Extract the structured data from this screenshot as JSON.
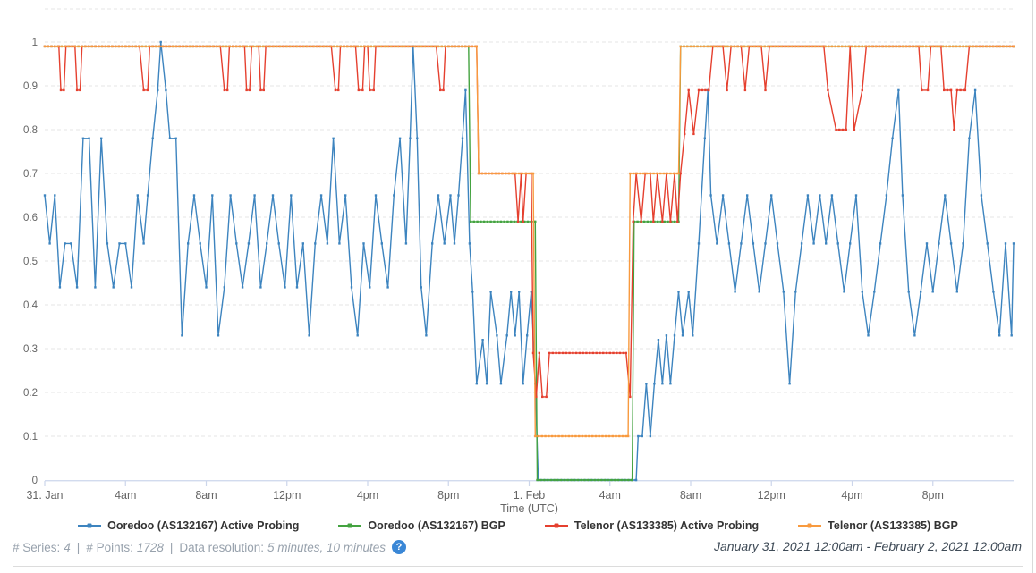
{
  "chart_data": {
    "type": "line",
    "title": "",
    "xlabel": "Time (UTC)",
    "ylabel": "",
    "ylim": [
      0,
      1
    ],
    "x_unit_note": "hours from start of visible window",
    "x_range_hours": [
      0,
      48
    ],
    "grid": "horizontal-dashed",
    "legend_position": "bottom",
    "y_ticks": [
      {
        "v": 0,
        "label": "0"
      },
      {
        "v": 0.1,
        "label": "0.1"
      },
      {
        "v": 0.2,
        "label": "0.2"
      },
      {
        "v": 0.3,
        "label": "0.3"
      },
      {
        "v": 0.4,
        "label": "0.4"
      },
      {
        "v": 0.5,
        "label": "0.5"
      },
      {
        "v": 0.6,
        "label": "0.6"
      },
      {
        "v": 0.7,
        "label": "0.7"
      },
      {
        "v": 0.8,
        "label": "0.8"
      },
      {
        "v": 0.9,
        "label": "0.9"
      },
      {
        "v": 1,
        "label": "1"
      }
    ],
    "x_ticks": [
      {
        "t": 0,
        "label": "31. Jan"
      },
      {
        "t": 4,
        "label": "4am"
      },
      {
        "t": 8,
        "label": "8am"
      },
      {
        "t": 12,
        "label": "12pm"
      },
      {
        "t": 16,
        "label": "4pm"
      },
      {
        "t": 20,
        "label": "8pm"
      },
      {
        "t": 24,
        "label": "1. Feb"
      },
      {
        "t": 28,
        "label": "4am"
      },
      {
        "t": 32,
        "label": "8am"
      },
      {
        "t": 36,
        "label": "12pm"
      },
      {
        "t": 40,
        "label": "4pm"
      },
      {
        "t": 44,
        "label": "8pm"
      }
    ],
    "series": [
      {
        "name": "Ooredoo (AS132167) Active Probing",
        "color": "#3d84bf",
        "points": [
          [
            0,
            0.65
          ],
          [
            0.25,
            0.54
          ],
          [
            0.5,
            0.65
          ],
          [
            0.75,
            0.44
          ],
          [
            1,
            0.54
          ],
          [
            1.3,
            0.54
          ],
          [
            1.6,
            0.44
          ],
          [
            1.9,
            0.78
          ],
          [
            2.2,
            0.78
          ],
          [
            2.5,
            0.44
          ],
          [
            2.8,
            0.78
          ],
          [
            3.1,
            0.54
          ],
          [
            3.4,
            0.44
          ],
          [
            3.7,
            0.54
          ],
          [
            4,
            0.54
          ],
          [
            4.3,
            0.44
          ],
          [
            4.6,
            0.65
          ],
          [
            4.9,
            0.54
          ],
          [
            5.1,
            0.65
          ],
          [
            5.35,
            0.78
          ],
          [
            5.6,
            0.89
          ],
          [
            5.75,
            1
          ],
          [
            6,
            0.89
          ],
          [
            6.2,
            0.78
          ],
          [
            6.5,
            0.78
          ],
          [
            6.8,
            0.33
          ],
          [
            7.1,
            0.54
          ],
          [
            7.4,
            0.65
          ],
          [
            7.7,
            0.54
          ],
          [
            8,
            0.44
          ],
          [
            8.3,
            0.65
          ],
          [
            8.6,
            0.33
          ],
          [
            8.9,
            0.44
          ],
          [
            9.2,
            0.65
          ],
          [
            9.5,
            0.54
          ],
          [
            9.8,
            0.44
          ],
          [
            10.1,
            0.54
          ],
          [
            10.4,
            0.65
          ],
          [
            10.7,
            0.44
          ],
          [
            11,
            0.54
          ],
          [
            11.3,
            0.65
          ],
          [
            11.6,
            0.54
          ],
          [
            11.9,
            0.44
          ],
          [
            12.2,
            0.65
          ],
          [
            12.5,
            0.44
          ],
          [
            12.8,
            0.54
          ],
          [
            13.1,
            0.33
          ],
          [
            13.4,
            0.54
          ],
          [
            13.7,
            0.65
          ],
          [
            14,
            0.54
          ],
          [
            14.3,
            0.78
          ],
          [
            14.6,
            0.54
          ],
          [
            14.9,
            0.65
          ],
          [
            15.2,
            0.44
          ],
          [
            15.5,
            0.33
          ],
          [
            15.8,
            0.54
          ],
          [
            16.1,
            0.44
          ],
          [
            16.4,
            0.65
          ],
          [
            16.7,
            0.54
          ],
          [
            17,
            0.44
          ],
          [
            17.3,
            0.65
          ],
          [
            17.6,
            0.78
          ],
          [
            17.9,
            0.54
          ],
          [
            18.1,
            0.78
          ],
          [
            18.25,
            0.99
          ],
          [
            18.45,
            0.78
          ],
          [
            18.65,
            0.44
          ],
          [
            18.9,
            0.33
          ],
          [
            19.2,
            0.54
          ],
          [
            19.5,
            0.65
          ],
          [
            19.8,
            0.54
          ],
          [
            20.1,
            0.65
          ],
          [
            20.3,
            0.54
          ],
          [
            20.5,
            0.65
          ],
          [
            20.7,
            0.78
          ],
          [
            20.85,
            0.89
          ],
          [
            21.05,
            0.54
          ],
          [
            21.2,
            0.43
          ],
          [
            21.4,
            0.22
          ],
          [
            21.7,
            0.32
          ],
          [
            21.9,
            0.22
          ],
          [
            22.1,
            0.43
          ],
          [
            22.4,
            0.33
          ],
          [
            22.6,
            0.22
          ],
          [
            22.9,
            0.33
          ],
          [
            23.1,
            0.43
          ],
          [
            23.3,
            0.33
          ],
          [
            23.5,
            0.43
          ],
          [
            23.7,
            0.22
          ],
          [
            23.9,
            0.33
          ],
          [
            24.1,
            0.43
          ],
          [
            24.3,
            0.22
          ],
          [
            24.45,
            0
          ],
          [
            29.3,
            0
          ],
          [
            29.4,
            0.1
          ],
          [
            29.6,
            0.1
          ],
          [
            29.8,
            0.22
          ],
          [
            30,
            0.1
          ],
          [
            30.2,
            0.22
          ],
          [
            30.4,
            0.32
          ],
          [
            30.6,
            0.22
          ],
          [
            30.8,
            0.33
          ],
          [
            31,
            0.22
          ],
          [
            31.2,
            0.33
          ],
          [
            31.4,
            0.43
          ],
          [
            31.6,
            0.33
          ],
          [
            31.9,
            0.43
          ],
          [
            32.1,
            0.33
          ],
          [
            32.4,
            0.54
          ],
          [
            32.7,
            0.78
          ],
          [
            32.85,
            0.89
          ],
          [
            33,
            0.65
          ],
          [
            33.3,
            0.54
          ],
          [
            33.6,
            0.65
          ],
          [
            33.9,
            0.54
          ],
          [
            34.2,
            0.43
          ],
          [
            34.5,
            0.54
          ],
          [
            34.8,
            0.65
          ],
          [
            35.1,
            0.54
          ],
          [
            35.4,
            0.43
          ],
          [
            35.7,
            0.54
          ],
          [
            36,
            0.65
          ],
          [
            36.3,
            0.54
          ],
          [
            36.6,
            0.43
          ],
          [
            36.9,
            0.22
          ],
          [
            37.2,
            0.43
          ],
          [
            37.5,
            0.54
          ],
          [
            37.8,
            0.65
          ],
          [
            38.1,
            0.54
          ],
          [
            38.4,
            0.65
          ],
          [
            38.7,
            0.54
          ],
          [
            39,
            0.65
          ],
          [
            39.3,
            0.54
          ],
          [
            39.6,
            0.43
          ],
          [
            39.9,
            0.54
          ],
          [
            40.2,
            0.65
          ],
          [
            40.5,
            0.43
          ],
          [
            40.8,
            0.33
          ],
          [
            41.1,
            0.43
          ],
          [
            41.4,
            0.54
          ],
          [
            41.7,
            0.65
          ],
          [
            42,
            0.78
          ],
          [
            42.3,
            0.89
          ],
          [
            42.5,
            0.65
          ],
          [
            42.8,
            0.43
          ],
          [
            43.1,
            0.33
          ],
          [
            43.4,
            0.43
          ],
          [
            43.7,
            0.54
          ],
          [
            44,
            0.43
          ],
          [
            44.3,
            0.54
          ],
          [
            44.6,
            0.65
          ],
          [
            44.9,
            0.54
          ],
          [
            45.2,
            0.43
          ],
          [
            45.5,
            0.54
          ],
          [
            45.8,
            0.78
          ],
          [
            46.1,
            0.89
          ],
          [
            46.4,
            0.65
          ],
          [
            46.7,
            0.54
          ],
          [
            47,
            0.43
          ],
          [
            47.3,
            0.33
          ],
          [
            47.6,
            0.54
          ],
          [
            47.9,
            0.33
          ],
          [
            48,
            0.54
          ]
        ]
      },
      {
        "name": "Ooredoo (AS132167) BGP",
        "color": "#44a340",
        "points": [
          [
            0,
            0.99
          ],
          [
            21,
            0.99
          ],
          [
            21.1,
            0.59
          ],
          [
            24.3,
            0.59
          ],
          [
            24.4,
            0
          ],
          [
            29.1,
            0
          ],
          [
            29.2,
            0.59
          ],
          [
            31.4,
            0.59
          ],
          [
            31.5,
            0.99
          ],
          [
            48,
            0.99
          ]
        ]
      },
      {
        "name": "Telenor (AS133385) Active Probing",
        "color": "#e5402f",
        "points": [
          [
            0,
            0.99
          ],
          [
            0.7,
            0.99
          ],
          [
            0.8,
            0.89
          ],
          [
            0.95,
            0.89
          ],
          [
            1.05,
            0.99
          ],
          [
            1.5,
            0.99
          ],
          [
            1.6,
            0.89
          ],
          [
            1.75,
            0.89
          ],
          [
            1.85,
            0.99
          ],
          [
            4.7,
            0.99
          ],
          [
            4.9,
            0.89
          ],
          [
            5.1,
            0.89
          ],
          [
            5.2,
            0.99
          ],
          [
            8.7,
            0.99
          ],
          [
            8.9,
            0.89
          ],
          [
            9.05,
            0.89
          ],
          [
            9.15,
            0.99
          ],
          [
            9.9,
            0.99
          ],
          [
            10,
            0.89
          ],
          [
            10.15,
            0.89
          ],
          [
            10.25,
            0.99
          ],
          [
            10.6,
            0.99
          ],
          [
            10.7,
            0.89
          ],
          [
            10.85,
            0.89
          ],
          [
            10.95,
            0.99
          ],
          [
            14.2,
            0.99
          ],
          [
            14.4,
            0.89
          ],
          [
            14.55,
            0.89
          ],
          [
            14.65,
            0.99
          ],
          [
            15.4,
            0.99
          ],
          [
            15.55,
            0.89
          ],
          [
            15.75,
            0.89
          ],
          [
            15.85,
            0.99
          ],
          [
            16,
            0.99
          ],
          [
            16.1,
            0.89
          ],
          [
            16.3,
            0.89
          ],
          [
            16.4,
            0.99
          ],
          [
            19.4,
            0.99
          ],
          [
            19.6,
            0.89
          ],
          [
            19.75,
            0.89
          ],
          [
            19.85,
            0.99
          ],
          [
            21.4,
            0.99
          ],
          [
            21.5,
            0.7
          ],
          [
            23.3,
            0.7
          ],
          [
            23.45,
            0.59
          ],
          [
            23.6,
            0.7
          ],
          [
            23.7,
            0.59
          ],
          [
            23.85,
            0.7
          ],
          [
            24.1,
            0.7
          ],
          [
            24.2,
            0.29
          ],
          [
            24.35,
            0.19
          ],
          [
            24.5,
            0.29
          ],
          [
            24.65,
            0.19
          ],
          [
            24.85,
            0.19
          ],
          [
            25,
            0.29
          ],
          [
            28.8,
            0.29
          ],
          [
            29,
            0.19
          ],
          [
            29.15,
            0.59
          ],
          [
            29.3,
            0.7
          ],
          [
            29.55,
            0.59
          ],
          [
            29.75,
            0.7
          ],
          [
            30,
            0.7
          ],
          [
            30.15,
            0.59
          ],
          [
            30.35,
            0.7
          ],
          [
            30.6,
            0.59
          ],
          [
            30.8,
            0.7
          ],
          [
            31,
            0.59
          ],
          [
            31.2,
            0.7
          ],
          [
            31.35,
            0.59
          ],
          [
            31.5,
            0.7
          ],
          [
            31.7,
            0.79
          ],
          [
            31.9,
            0.89
          ],
          [
            32.15,
            0.79
          ],
          [
            32.4,
            0.89
          ],
          [
            32.9,
            0.89
          ],
          [
            33.1,
            0.99
          ],
          [
            33.6,
            0.99
          ],
          [
            33.8,
            0.89
          ],
          [
            34,
            0.99
          ],
          [
            34.5,
            0.99
          ],
          [
            34.7,
            0.89
          ],
          [
            34.9,
            0.99
          ],
          [
            35.5,
            0.99
          ],
          [
            35.7,
            0.89
          ],
          [
            35.9,
            0.99
          ],
          [
            38.6,
            0.99
          ],
          [
            38.8,
            0.89
          ],
          [
            39.2,
            0.8
          ],
          [
            39.7,
            0.8
          ],
          [
            39.9,
            0.99
          ],
          [
            40.1,
            0.8
          ],
          [
            40.5,
            0.89
          ],
          [
            40.7,
            0.99
          ],
          [
            43.3,
            0.99
          ],
          [
            43.45,
            0.89
          ],
          [
            43.75,
            0.89
          ],
          [
            43.9,
            0.99
          ],
          [
            44.4,
            0.99
          ],
          [
            44.55,
            0.89
          ],
          [
            44.9,
            0.89
          ],
          [
            45.05,
            0.8
          ],
          [
            45.2,
            0.89
          ],
          [
            45.6,
            0.89
          ],
          [
            45.8,
            0.99
          ],
          [
            48,
            0.99
          ]
        ]
      },
      {
        "name": "Telenor (AS133385) BGP",
        "color": "#f89a3e",
        "points": [
          [
            0,
            0.99
          ],
          [
            21.4,
            0.99
          ],
          [
            21.5,
            0.7
          ],
          [
            24.2,
            0.7
          ],
          [
            24.3,
            0.1
          ],
          [
            28.9,
            0.1
          ],
          [
            29,
            0.7
          ],
          [
            31.4,
            0.7
          ],
          [
            31.5,
            0.99
          ],
          [
            48,
            0.99
          ]
        ]
      }
    ]
  },
  "footer": {
    "series_label": "# Series:",
    "series_value": "4",
    "separator": "|",
    "points_label": "# Points:",
    "points_value": "1728",
    "resolution_label": "Data resolution:",
    "resolution_value": "5 minutes, 10 minutes",
    "help_glyph": "?",
    "date_range": "January 31, 2021 12:00am - February 2, 2021 12:00am"
  }
}
